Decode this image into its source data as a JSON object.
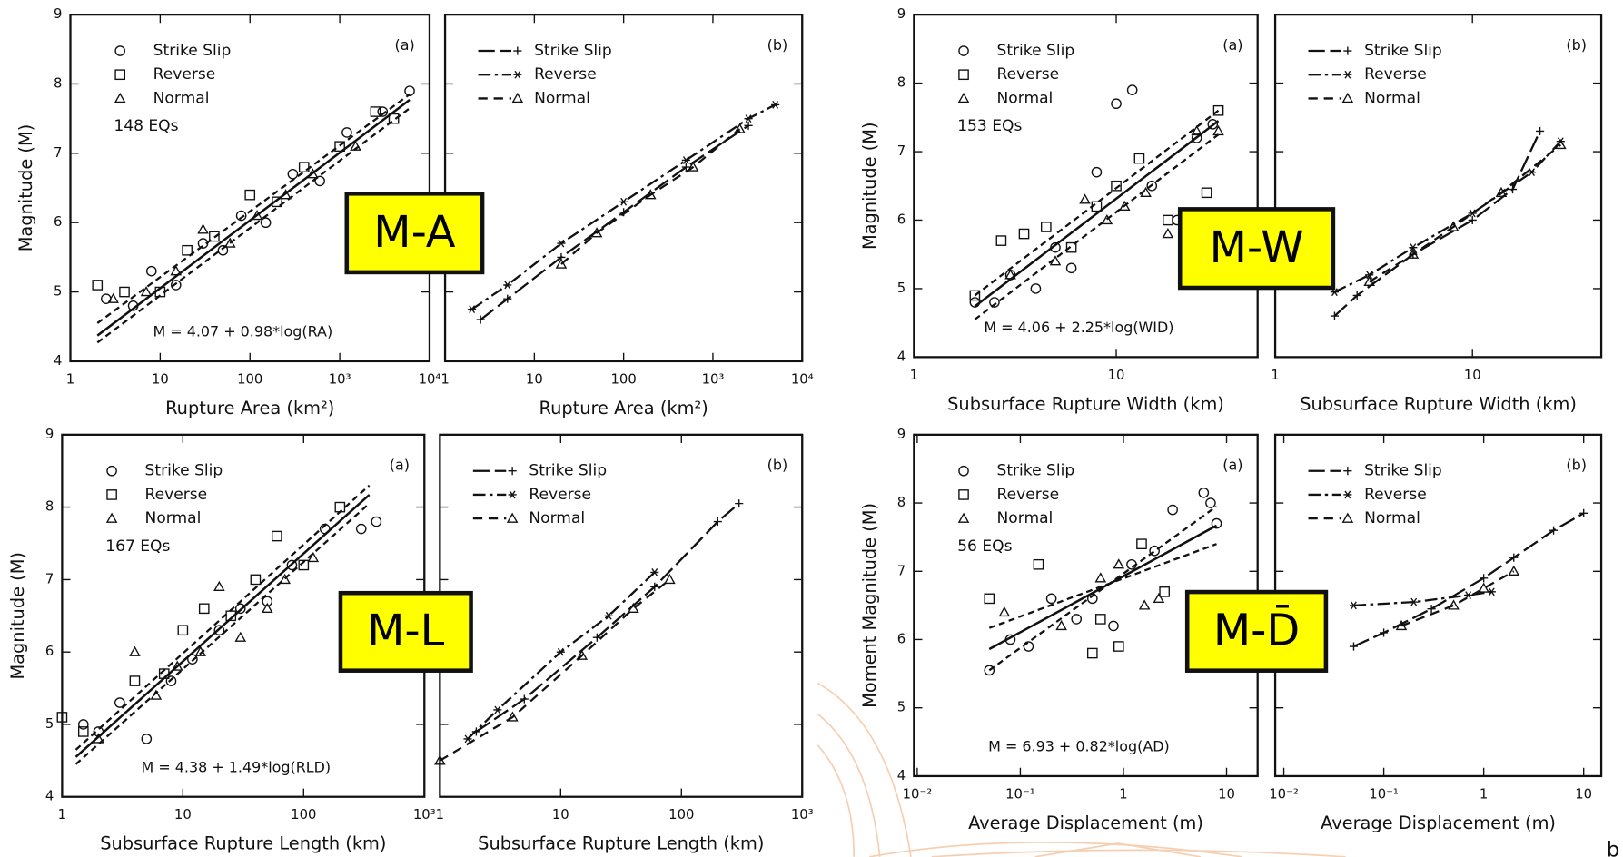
{
  "chart_data": [
    {
      "type": "scatter",
      "panel_label": "(a)",
      "count_label": "148  EQs",
      "equation": "M = 4.07 + 0.98*log(RA)",
      "xlabel": "Rupture Area (km²)",
      "ylabel": "Magnitude (M)",
      "xscale": "log",
      "legend": "upper left",
      "xlim": [
        1,
        10000
      ],
      "xticks": [
        1,
        10,
        100,
        {
          "value": 1000,
          "label": "10³"
        },
        {
          "value": 10000,
          "label": "10⁴"
        }
      ],
      "ylim": [
        4,
        9
      ],
      "yticks": [
        4,
        5,
        6,
        7,
        8,
        9
      ],
      "series": [
        {
          "name": "Strike Slip",
          "marker": "o",
          "x": [
            2.5,
            5,
            8,
            15,
            30,
            50,
            80,
            150,
            300,
            600,
            1200,
            3000,
            6000
          ],
          "values": [
            4.9,
            4.8,
            5.3,
            5.1,
            5.7,
            5.6,
            6.1,
            6.0,
            6.7,
            6.6,
            7.3,
            7.6,
            7.9
          ]
        },
        {
          "name": "Reverse",
          "marker": "s",
          "x": [
            2,
            4,
            10,
            20,
            40,
            100,
            200,
            400,
            1000,
            2500,
            4000
          ],
          "values": [
            5.1,
            5.0,
            5.0,
            5.6,
            5.8,
            6.4,
            6.3,
            6.8,
            7.1,
            7.6,
            7.5
          ]
        },
        {
          "name": "Normal",
          "marker": "^",
          "x": [
            3,
            7,
            15,
            30,
            60,
            120,
            250,
            500,
            1500
          ],
          "values": [
            4.9,
            5.0,
            5.3,
            5.9,
            5.7,
            6.1,
            6.4,
            6.7,
            7.1
          ]
        }
      ],
      "fit_lines": [
        {
          "style": "solid",
          "x": [
            2,
            6000
          ],
          "values": [
            4.37,
            7.77
          ]
        },
        {
          "style": "dashed",
          "x": [
            2,
            6000
          ],
          "values": [
            4.27,
            7.65
          ]
        },
        {
          "style": "dashed",
          "x": [
            2,
            6000
          ],
          "values": [
            4.55,
            7.85
          ]
        }
      ]
    },
    {
      "type": "line",
      "panel_label": "(b)",
      "xlabel": "Rupture Area (km²)",
      "xscale": "log",
      "legend": "upper left",
      "xlim": [
        1,
        10000
      ],
      "xticks": [
        1,
        10,
        100,
        {
          "value": 1000,
          "label": "10³"
        },
        {
          "value": 10000,
          "label": "10⁴"
        }
      ],
      "ylim": [
        4,
        9
      ],
      "yticks": [
        4,
        5,
        6,
        7,
        8,
        9
      ],
      "series": [
        {
          "name": "Strike Slip",
          "marker": "+",
          "x": [
            2.5,
            5,
            20,
            100,
            500,
            2500
          ],
          "values": [
            4.6,
            4.9,
            5.5,
            6.15,
            6.8,
            7.4
          ]
        },
        {
          "name": "Reverse",
          "marker": "*",
          "x": [
            2,
            5,
            20,
            100,
            500,
            2500,
            5000
          ],
          "values": [
            4.75,
            5.1,
            5.7,
            6.3,
            6.9,
            7.5,
            7.7
          ]
        },
        {
          "name": "Normal",
          "marker": "^",
          "x": [
            20,
            50,
            200,
            600,
            2000
          ],
          "values": [
            5.4,
            5.85,
            6.4,
            6.8,
            7.35
          ]
        }
      ]
    },
    {
      "type": "scatter",
      "panel_label": "(a)",
      "count_label": "153  EQs",
      "equation": "M = 4.06 + 2.25*log(WID)",
      "xlabel": "Subsurface Rupture Width (km)",
      "ylabel": "Magnitude (M)",
      "xscale": "log",
      "legend": "upper left",
      "xlim": [
        1,
        50
      ],
      "xticks": [
        1,
        10
      ],
      "ylim": [
        4,
        9
      ],
      "yticks": [
        4,
        5,
        6,
        7,
        8,
        9
      ],
      "series": [
        {
          "name": "Strike Slip",
          "marker": "o",
          "x": [
            2,
            2.5,
            3,
            4,
            5,
            6,
            8,
            10,
            12,
            15,
            20,
            25,
            30
          ],
          "values": [
            4.8,
            4.8,
            5.2,
            5.0,
            5.6,
            5.3,
            6.7,
            7.7,
            7.9,
            6.5,
            6.0,
            7.2,
            7.4
          ]
        },
        {
          "name": "Reverse",
          "marker": "s",
          "x": [
            2,
            2.7,
            3.5,
            4.5,
            6,
            8,
            10,
            13,
            18,
            28,
            32
          ],
          "values": [
            4.9,
            5.7,
            5.8,
            5.9,
            5.6,
            6.2,
            6.5,
            6.9,
            6.0,
            6.4,
            7.6
          ]
        },
        {
          "name": "Normal",
          "marker": "^",
          "x": [
            3,
            5,
            7,
            9,
            11,
            14,
            18,
            25,
            32
          ],
          "values": [
            5.2,
            5.4,
            6.3,
            6.0,
            6.2,
            6.4,
            5.8,
            7.3,
            7.3
          ]
        }
      ],
      "fit_lines": [
        {
          "style": "solid",
          "x": [
            2,
            32
          ],
          "values": [
            4.74,
            7.45
          ]
        },
        {
          "style": "dashed",
          "x": [
            2,
            32
          ],
          "values": [
            4.55,
            7.25
          ]
        },
        {
          "style": "dashed",
          "x": [
            2,
            32
          ],
          "values": [
            4.9,
            7.6
          ]
        }
      ]
    },
    {
      "type": "line",
      "panel_label": "(b)",
      "xlabel": "Subsurface Rupture Width (km)",
      "xscale": "log",
      "legend": "upper left",
      "xlim": [
        1,
        45
      ],
      "xticks": [
        1,
        10
      ],
      "ylim": [
        4,
        9
      ],
      "yticks": [
        4,
        5,
        6,
        7,
        8,
        9
      ],
      "series": [
        {
          "name": "Strike Slip",
          "marker": "+",
          "x": [
            2,
            2.6,
            5,
            10,
            16,
            22
          ],
          "values": [
            4.6,
            4.9,
            5.5,
            6.0,
            6.45,
            7.3
          ]
        },
        {
          "name": "Reverse",
          "marker": "*",
          "x": [
            2,
            3,
            5,
            10,
            20,
            28
          ],
          "values": [
            4.95,
            5.2,
            5.6,
            6.1,
            6.7,
            7.15
          ]
        },
        {
          "name": "Normal",
          "marker": "^",
          "x": [
            3,
            5,
            8,
            14,
            28
          ],
          "values": [
            5.1,
            5.5,
            5.9,
            6.4,
            7.1
          ]
        }
      ]
    },
    {
      "type": "scatter",
      "panel_label": "(a)",
      "count_label": "167   EQs",
      "equation": "M = 4.38 + 1.49*log(RLD)",
      "xlabel": "Subsurface Rupture Length (km)",
      "ylabel": "Magnitude (M)",
      "xscale": "log",
      "legend": "upper left",
      "xlim": [
        1,
        1000
      ],
      "xticks": [
        1,
        10,
        100,
        {
          "value": 1000,
          "label": "10³"
        }
      ],
      "ylim": [
        4,
        9
      ],
      "yticks": [
        4,
        5,
        6,
        7,
        8,
        9
      ],
      "series": [
        {
          "name": "Strike Slip",
          "marker": "o",
          "x": [
            1.5,
            2,
            3,
            5,
            8,
            12,
            20,
            30,
            50,
            80,
            150,
            300,
            400
          ],
          "values": [
            5.0,
            4.9,
            5.3,
            4.8,
            5.6,
            5.9,
            6.3,
            6.6,
            6.7,
            7.2,
            7.7,
            7.7,
            7.8
          ]
        },
        {
          "name": "Reverse",
          "marker": "s",
          "x": [
            1,
            1.5,
            4,
            7,
            10,
            15,
            25,
            40,
            60,
            100,
            200
          ],
          "values": [
            5.1,
            4.9,
            5.6,
            5.7,
            6.3,
            6.6,
            6.5,
            7.0,
            7.6,
            7.2,
            8.0
          ]
        },
        {
          "name": "Normal",
          "marker": "^",
          "x": [
            2,
            4,
            6,
            9,
            14,
            20,
            30,
            50,
            70,
            120
          ],
          "values": [
            4.8,
            6.0,
            5.4,
            5.8,
            6.0,
            6.9,
            6.2,
            6.6,
            7.0,
            7.3
          ]
        }
      ],
      "fit_lines": [
        {
          "style": "solid",
          "x": [
            1.3,
            350
          ],
          "values": [
            4.55,
            8.17
          ]
        },
        {
          "style": "dashed",
          "x": [
            1.3,
            350
          ],
          "values": [
            4.45,
            8.05
          ]
        },
        {
          "style": "dashed",
          "x": [
            1.3,
            350
          ],
          "values": [
            4.65,
            8.3
          ]
        }
      ]
    },
    {
      "type": "line",
      "panel_label": "(b)",
      "xlabel": "Subsurface Rupture Length (km)",
      "xscale": "log",
      "legend": "upper left",
      "xlim": [
        1,
        1000
      ],
      "xticks": [
        1,
        10,
        100,
        {
          "value": 1000,
          "label": "10³"
        }
      ],
      "ylim": [
        4,
        9
      ],
      "yticks": [
        4,
        5,
        6,
        7,
        8,
        9
      ],
      "series": [
        {
          "name": "Strike Slip",
          "marker": "+",
          "x": [
            2,
            5,
            20,
            60,
            200,
            300
          ],
          "values": [
            4.9,
            5.35,
            6.2,
            6.9,
            7.8,
            8.05
          ]
        },
        {
          "name": "Reverse",
          "marker": "*",
          "x": [
            1.7,
            3,
            10,
            25,
            60
          ],
          "values": [
            4.8,
            5.2,
            6.0,
            6.5,
            7.1
          ]
        },
        {
          "name": "Normal",
          "marker": "^",
          "x": [
            1,
            4,
            15,
            40,
            80
          ],
          "values": [
            4.5,
            5.1,
            5.95,
            6.6,
            7.0
          ]
        }
      ]
    },
    {
      "type": "scatter",
      "panel_label": "(a)",
      "count_label": "56   EQs",
      "equation": "M = 6.93 + 0.82*log(AD)",
      "xlabel": "Average Displacement (m)",
      "ylabel": "Moment Magnitude (M)",
      "xscale": "log",
      "legend": "upper left",
      "xlim": [
        0.0093,
        20
      ],
      "xticks": [
        {
          "value": 0.01,
          "label": "10⁻²"
        },
        {
          "value": 0.1,
          "label": "10⁻¹"
        },
        1,
        10
      ],
      "ylim": [
        4,
        9
      ],
      "yticks": [
        4,
        5,
        6,
        7,
        8,
        9
      ],
      "series": [
        {
          "name": "Strike Slip",
          "marker": "o",
          "x": [
            0.05,
            0.08,
            0.12,
            0.2,
            0.35,
            0.5,
            0.8,
            1.2,
            2,
            3,
            6,
            7,
            8
          ],
          "values": [
            5.55,
            6.0,
            5.9,
            6.6,
            6.3,
            6.6,
            6.2,
            7.1,
            7.3,
            7.9,
            8.15,
            8.0,
            7.7
          ]
        },
        {
          "name": "Reverse",
          "marker": "s",
          "x": [
            0.05,
            0.15,
            0.5,
            0.6,
            0.9,
            1.5,
            2.5
          ],
          "values": [
            6.6,
            7.1,
            5.8,
            6.3,
            5.9,
            7.4,
            6.7
          ]
        },
        {
          "name": "Normal",
          "marker": "^",
          "x": [
            0.07,
            0.25,
            0.6,
            0.9,
            1.6,
            2.2
          ],
          "values": [
            6.4,
            6.2,
            6.9,
            7.1,
            6.5,
            6.6
          ]
        }
      ],
      "fit_lines": [
        {
          "style": "solid",
          "x": [
            0.05,
            8
          ],
          "values": [
            5.86,
            7.67
          ]
        },
        {
          "style": "dashed",
          "x": [
            0.05,
            8
          ],
          "values": [
            5.55,
            7.95
          ]
        },
        {
          "style": "dashed",
          "x": [
            0.05,
            8
          ],
          "values": [
            6.17,
            7.4
          ]
        }
      ]
    },
    {
      "type": "line",
      "panel_label": "(b)",
      "xlabel": "Average Displacement (m)",
      "xscale": "log",
      "legend": "upper left",
      "xlim": [
        0.0082,
        15
      ],
      "xticks": [
        {
          "value": 0.01,
          "label": "10⁻²"
        },
        {
          "value": 0.1,
          "label": "10⁻¹"
        },
        1,
        10
      ],
      "ylim": [
        4,
        9
      ],
      "yticks": [
        4,
        5,
        6,
        7,
        8,
        9
      ],
      "series": [
        {
          "name": "Strike Slip",
          "marker": "+",
          "x": [
            0.05,
            0.1,
            0.3,
            1,
            2,
            5,
            10
          ],
          "values": [
            5.9,
            6.1,
            6.45,
            6.9,
            7.2,
            7.6,
            7.85
          ]
        },
        {
          "name": "Reverse",
          "marker": "*",
          "x": [
            0.05,
            0.2,
            0.7,
            1.2
          ],
          "values": [
            6.5,
            6.55,
            6.65,
            6.7
          ]
        },
        {
          "name": "Normal",
          "marker": "^",
          "x": [
            0.15,
            0.5,
            1,
            2
          ],
          "values": [
            6.2,
            6.5,
            6.75,
            7.0
          ]
        }
      ]
    }
  ],
  "labels": [
    "M-A",
    "M-W",
    "M-L",
    "M-D̄"
  ],
  "corner_text": "b"
}
